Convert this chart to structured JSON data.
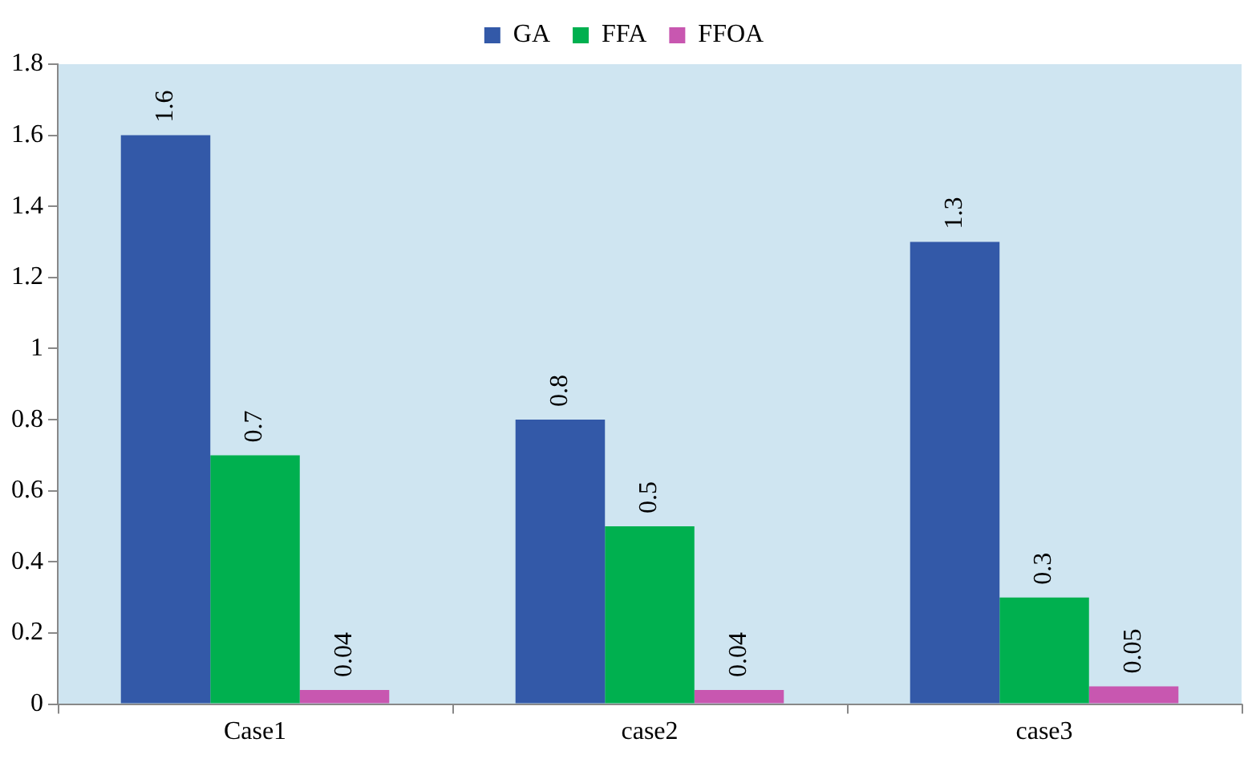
{
  "chart_data": {
    "type": "bar",
    "categories": [
      "Case1",
      "case2",
      "case3"
    ],
    "series": [
      {
        "name": "GA",
        "color": "#3359a8",
        "values": [
          1.6,
          0.8,
          1.3
        ]
      },
      {
        "name": "FFA",
        "color": "#00b04f",
        "values": [
          0.7,
          0.5,
          0.3
        ]
      },
      {
        "name": "FFOA",
        "color": "#c857b0",
        "values": [
          0.04,
          0.04,
          0.05
        ]
      }
    ],
    "ylim": [
      0,
      1.8
    ],
    "yticks": [
      0,
      0.2,
      0.4,
      0.6,
      0.8,
      1,
      1.2,
      1.4,
      1.6,
      1.8
    ],
    "grid": false,
    "legend": "top",
    "data_labels": true
  }
}
